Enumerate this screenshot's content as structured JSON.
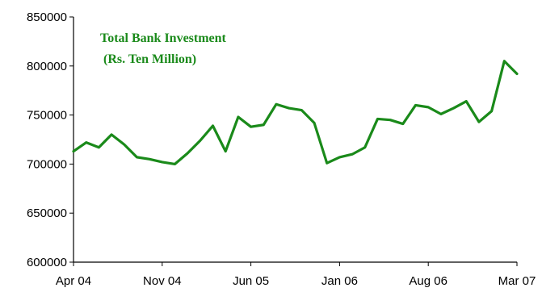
{
  "colors": {
    "line": "#1a8a1a",
    "title": "#1a8a1a",
    "axis": "#000000",
    "background": "#ffffff"
  },
  "chart_data": {
    "type": "line",
    "title_line1": "Total Bank Investment",
    "title_line2": "(Rs. Ten Million)",
    "xlabel": "",
    "ylabel": "",
    "grid": false,
    "legend": "none",
    "ylim": [
      600000,
      850000
    ],
    "y_ticks": [
      "600000",
      "650000",
      "700000",
      "750000",
      "800000",
      "850000"
    ],
    "x_tick_labels": [
      "Apr 04",
      "Nov 04",
      "Jun 05",
      "Jan 06",
      "Aug 06",
      "Mar 07"
    ],
    "x": [
      "Apr 04",
      "May 04",
      "Jun 04",
      "Jul 04",
      "Aug 04",
      "Sep 04",
      "Oct 04",
      "Nov 04",
      "Dec 04",
      "Jan 05",
      "Feb 05",
      "Mar 05",
      "Apr 05",
      "May 05",
      "Jun 05",
      "Jul 05",
      "Aug 05",
      "Sep 05",
      "Oct 05",
      "Nov 05",
      "Dec 05",
      "Jan 06",
      "Feb 06",
      "Mar 06",
      "Apr 06",
      "May 06",
      "Jun 06",
      "Jul 06",
      "Aug 06",
      "Sep 06",
      "Oct 06",
      "Nov 06",
      "Dec 06",
      "Jan 07",
      "Feb 07",
      "Mar 07"
    ],
    "series": [
      {
        "values": [
          713000,
          722000,
          717000,
          730000,
          720000,
          707000,
          705000,
          702000,
          700000,
          711000,
          724000,
          739000,
          713000,
          748000,
          738000,
          740000,
          761000,
          757000,
          755000,
          742000,
          701000,
          707000,
          710000,
          717000,
          746000,
          745000,
          741000,
          760000,
          758000,
          751000,
          757000,
          764000,
          743000,
          754000,
          805000,
          792000
        ]
      }
    ]
  }
}
